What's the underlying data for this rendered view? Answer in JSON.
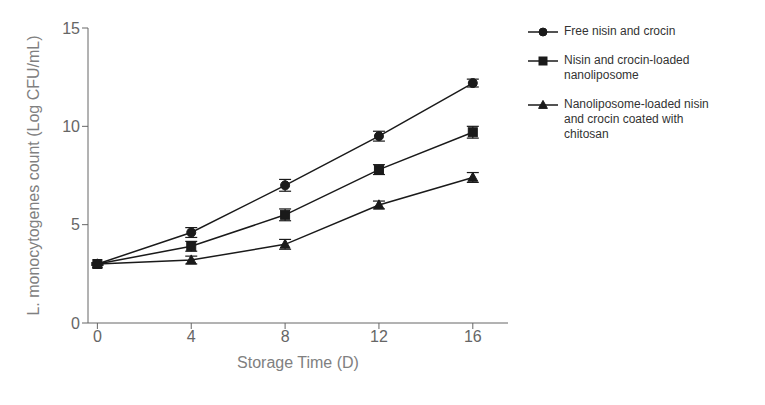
{
  "chart_data": {
    "type": "line",
    "x": [
      0,
      4,
      8,
      12,
      16
    ],
    "series": [
      {
        "name": "Free nisin and crocin",
        "color": "#1a1a1a",
        "marker": "circle",
        "values": [
          3.0,
          4.6,
          7.0,
          9.5,
          12.2
        ],
        "yerr": [
          0.05,
          0.25,
          0.3,
          0.25,
          0.2
        ]
      },
      {
        "name": "Nisin and crocin-loaded\nnanoliposome",
        "color": "#1a1a1a",
        "marker": "square",
        "values": [
          3.0,
          3.9,
          5.5,
          7.8,
          9.7
        ],
        "yerr": [
          0.05,
          0.25,
          0.3,
          0.25,
          0.3
        ]
      },
      {
        "name": "Nanoliposome-loaded nisin\nand crocin coated with\nchitosan",
        "color": "#1a1a1a",
        "marker": "triangle",
        "values": [
          3.0,
          3.2,
          4.0,
          6.0,
          7.4
        ],
        "yerr": [
          0.05,
          0.2,
          0.25,
          0.2,
          0.25
        ]
      }
    ],
    "xlabel": "Storage Time (D)",
    "ylabel": "L. monocytogenes count (Log CFU/mL)",
    "xlim": [
      -0.4,
      17.5
    ],
    "ylim": [
      0,
      15
    ],
    "xticks": [
      0,
      4,
      8,
      12,
      16
    ],
    "yticks": [
      0,
      5,
      10,
      15
    ],
    "grid": false,
    "legend": "right"
  }
}
